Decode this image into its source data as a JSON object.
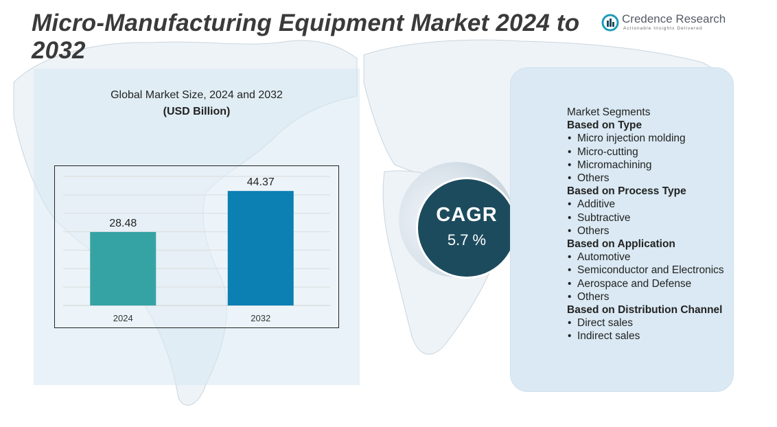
{
  "header": {
    "title": "Micro-Manufacturing Equipment Market 2024 to 2032",
    "logo_name": "Credence Research",
    "logo_tagline": "Actionable Insights Delivered"
  },
  "chart": {
    "subtitle": "Global Market Size,  2024 and 2032",
    "unit": "(USD Billion)"
  },
  "chart_data": {
    "type": "bar",
    "title": "Global Market Size,  2024 and 2032",
    "ylabel": "(USD Billion)",
    "categories": [
      "2024",
      "2032"
    ],
    "values": [
      28.48,
      44.37
    ],
    "data_labels": [
      "28.48",
      "44.37"
    ],
    "ylim": [
      0,
      50
    ],
    "grid": true,
    "bar_colors": [
      "#35a3a3",
      "#0c7fb3"
    ]
  },
  "cagr": {
    "label": "CAGR",
    "value": "5.7 %"
  },
  "segments": {
    "heading": "Market Segments",
    "groups": [
      {
        "title": "Based on Type",
        "items": [
          "Micro injection molding",
          "Micro-cutting",
          "Micromachining",
          "Others"
        ]
      },
      {
        "title": "Based on Process Type",
        "items": [
          "Additive",
          "Subtractive",
          "Others"
        ]
      },
      {
        "title": "Based on Application",
        "items": [
          "Automotive",
          "Semiconductor and Electronics",
          "Aerospace and Defense",
          "Others"
        ]
      },
      {
        "title": "Based on Distribution Channel",
        "items": [
          "Direct sales",
          "Indirect sales"
        ]
      }
    ]
  },
  "colors": {
    "accent": "#1c4b5e",
    "panel": "#dae9f3"
  }
}
